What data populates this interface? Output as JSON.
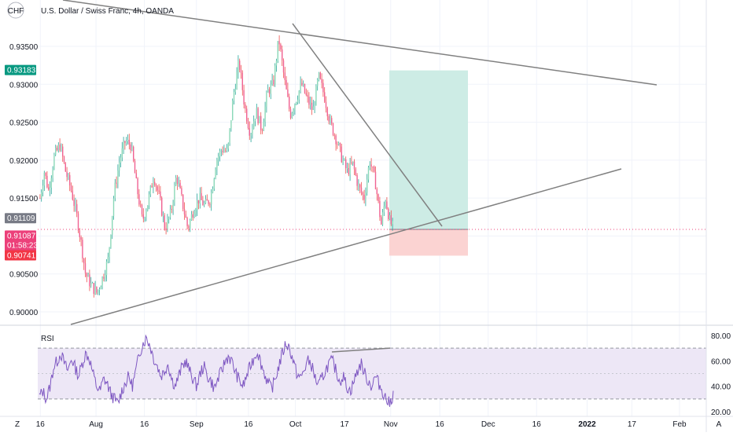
{
  "chart_data": {
    "type": "candlestick",
    "title": "U.S. Dollar / Swiss Franc, 4h, OANDA",
    "symbol_badge": "CHF",
    "price_axis": {
      "ticks": [
        "0.93500",
        "0.93000",
        "0.92500",
        "0.92000",
        "0.91500",
        "0.90500",
        "0.90000"
      ],
      "ylim": [
        0.8985,
        0.9395
      ]
    },
    "price_labels": [
      {
        "value": "0.93183",
        "color": "#089981"
      },
      {
        "value": "0.91109",
        "color": "#787b86"
      },
      {
        "value": "0.91087",
        "color": "#ec407a",
        "countdown": "01:58:23"
      },
      {
        "value": "0.90741",
        "color": "#f23645"
      }
    ],
    "position": {
      "entry": 0.91087,
      "target": 0.93183,
      "stop": 0.90741
    },
    "ohlc_shape": [
      [
        0,
        0.915
      ],
      [
        3,
        0.9185
      ],
      [
        6,
        0.916
      ],
      [
        10,
        0.9205
      ],
      [
        14,
        0.922
      ],
      [
        18,
        0.9185
      ],
      [
        22,
        0.916
      ],
      [
        26,
        0.9125
      ],
      [
        29,
        0.909
      ],
      [
        32,
        0.905
      ],
      [
        36,
        0.9035
      ],
      [
        40,
        0.9025
      ],
      [
        44,
        0.9045
      ],
      [
        48,
        0.907
      ],
      [
        52,
        0.9155
      ],
      [
        56,
        0.92
      ],
      [
        60,
        0.9225
      ],
      [
        64,
        0.922
      ],
      [
        68,
        0.9165
      ],
      [
        72,
        0.912
      ],
      [
        76,
        0.9145
      ],
      [
        80,
        0.918
      ],
      [
        84,
        0.915
      ],
      [
        88,
        0.911
      ],
      [
        92,
        0.913
      ],
      [
        96,
        0.918
      ],
      [
        100,
        0.9145
      ],
      [
        104,
        0.911
      ],
      [
        108,
        0.9135
      ],
      [
        112,
        0.915
      ],
      [
        116,
        0.914
      ],
      [
        120,
        0.915
      ],
      [
        124,
        0.92
      ],
      [
        128,
        0.9215
      ],
      [
        132,
        0.921
      ],
      [
        136,
        0.9285
      ],
      [
        140,
        0.933
      ],
      [
        144,
        0.927
      ],
      [
        148,
        0.9235
      ],
      [
        152,
        0.9265
      ],
      [
        156,
        0.924
      ],
      [
        160,
        0.929
      ],
      [
        164,
        0.93
      ],
      [
        168,
        0.936
      ],
      [
        172,
        0.9305
      ],
      [
        176,
        0.926
      ],
      [
        180,
        0.928
      ],
      [
        184,
        0.93
      ],
      [
        188,
        0.928
      ],
      [
        192,
        0.9265
      ],
      [
        196,
        0.931
      ],
      [
        200,
        0.9285
      ],
      [
        204,
        0.925
      ],
      [
        208,
        0.923
      ],
      [
        212,
        0.9205
      ],
      [
        216,
        0.9185
      ],
      [
        220,
        0.9195
      ],
      [
        224,
        0.9165
      ],
      [
        228,
        0.915
      ],
      [
        232,
        0.92
      ],
      [
        236,
        0.917
      ],
      [
        240,
        0.9115
      ],
      [
        243,
        0.915
      ],
      [
        246,
        0.912
      ],
      [
        248,
        0.9112
      ]
    ],
    "rsi": {
      "label": "RSI",
      "ticks": [
        "80.00",
        "60.00",
        "40.00",
        "20.00"
      ],
      "ylim": [
        15,
        90
      ],
      "upper_band": 70,
      "middle_band": 50,
      "lower_band": 30,
      "values": [
        32,
        36,
        30,
        40,
        55,
        60,
        66,
        58,
        52,
        62,
        55,
        48,
        58,
        66,
        62,
        50,
        40,
        36,
        46,
        42,
        34,
        30,
        26,
        36,
        42,
        48,
        40,
        52,
        66,
        74,
        78,
        72,
        62,
        56,
        48,
        52,
        58,
        46,
        40,
        48,
        56,
        60,
        52,
        46,
        40,
        50,
        56,
        48,
        44,
        38,
        46,
        52,
        60,
        64,
        58,
        50,
        44,
        40,
        48,
        56,
        62,
        68,
        58,
        50,
        42,
        38,
        46,
        56,
        66,
        74,
        70,
        60,
        50,
        46,
        52,
        60,
        58,
        48,
        40,
        46,
        52,
        58,
        60,
        52,
        44,
        48,
        40,
        36,
        44,
        52,
        58,
        50,
        44,
        40,
        48,
        42,
        36,
        30,
        26,
        34
      ]
    },
    "time_axis": {
      "labels": [
        {
          "text": "16",
          "bold": false,
          "frac": 0.055
        },
        {
          "text": "Aug",
          "bold": false,
          "frac": 0.131
        },
        {
          "text": "16",
          "bold": false,
          "frac": 0.197
        },
        {
          "text": "Sep",
          "bold": false,
          "frac": 0.268
        },
        {
          "text": "16",
          "bold": false,
          "frac": 0.339
        },
        {
          "text": "Oct",
          "bold": false,
          "frac": 0.403
        },
        {
          "text": "17",
          "bold": false,
          "frac": 0.47
        },
        {
          "text": "Nov",
          "bold": false,
          "frac": 0.533
        },
        {
          "text": "16",
          "bold": false,
          "frac": 0.6
        },
        {
          "text": "Dec",
          "bold": false,
          "frac": 0.666
        },
        {
          "text": "16",
          "bold": false,
          "frac": 0.732
        },
        {
          "text": "2022",
          "bold": true,
          "frac": 0.801
        },
        {
          "text": "17",
          "bold": false,
          "frac": 0.862
        },
        {
          "text": "Feb",
          "bold": false,
          "frac": 0.927
        }
      ],
      "left_button": "Z",
      "right_button": "A"
    },
    "colors": {
      "up": "#26a69a",
      "down": "#ef5350",
      "up_body": "#8bd8b8",
      "down_body": "#f06292",
      "trendline": "#808080",
      "rsi_line": "#7e57c2",
      "rsi_band": "#ede7f6",
      "target_zone": "#cdece5",
      "stop_zone": "#fbd3d2"
    }
  }
}
